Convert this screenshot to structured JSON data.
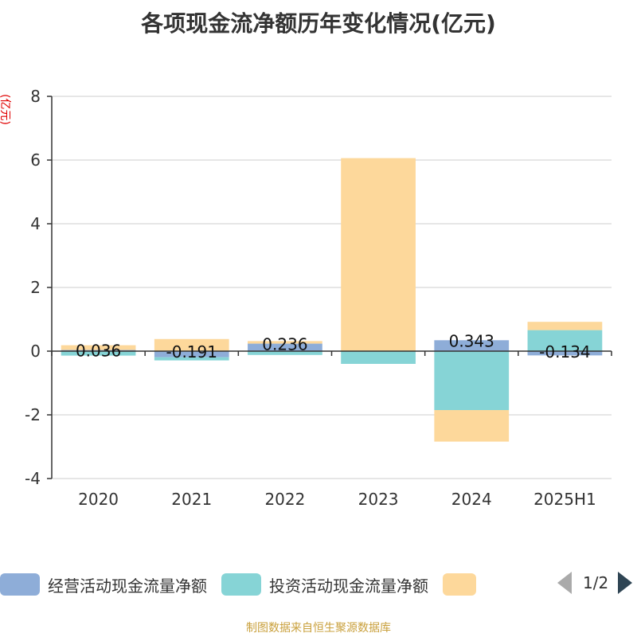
{
  "chart_data": {
    "type": "bar",
    "title": "各项现金流净额历年变化情况(亿元)",
    "ylabel": "(亿元)",
    "xlabel": "",
    "categories": [
      "2020",
      "2021",
      "2022",
      "2023",
      "2024",
      "2025H1"
    ],
    "ylim": [
      -4,
      8
    ],
    "yticks": [
      -4,
      -2,
      0,
      2,
      4,
      6,
      8
    ],
    "grid": true,
    "stacked": true,
    "series": [
      {
        "name": "经营活动现金流量净额",
        "color": "#8eadd8",
        "values": [
          0.036,
          -0.191,
          0.236,
          0.01,
          0.343,
          -0.134
        ]
      },
      {
        "name": "投资活动现金流量净额",
        "color": "#86d4d6",
        "values": [
          -0.14,
          -0.1,
          -0.12,
          -0.4,
          -1.85,
          0.66
        ]
      },
      {
        "name": "",
        "color": "#fdd89b",
        "values": [
          0.15,
          0.38,
          0.08,
          6.05,
          -0.99,
          0.26
        ]
      }
    ],
    "data_labels": [
      "0.036",
      "-0.191",
      "0.236",
      "",
      "0.343",
      "-0.134"
    ]
  },
  "legend": {
    "items": [
      {
        "label": "经营活动现金流量净额",
        "color": "#8eadd8"
      },
      {
        "label": "投资活动现金流量净额",
        "color": "#86d4d6"
      },
      {
        "label": "",
        "color": "#fdd89b"
      }
    ],
    "page": "1/2"
  },
  "source": "制图数据来自恒生聚源数据库"
}
